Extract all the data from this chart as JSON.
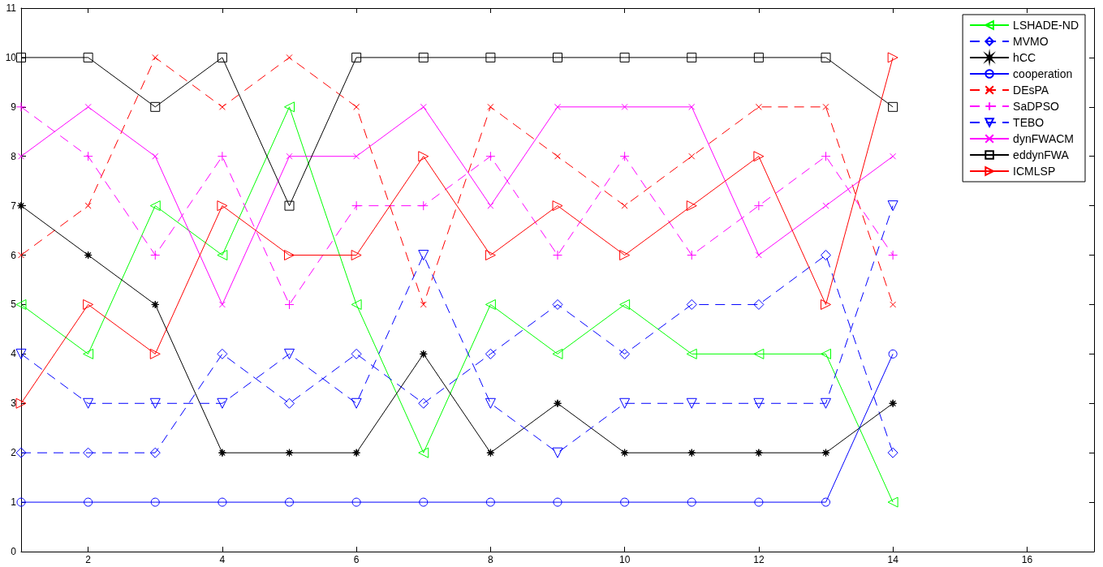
{
  "chart_data": {
    "type": "line",
    "x": [
      1,
      2,
      3,
      4,
      5,
      6,
      7,
      8,
      9,
      10,
      11,
      12,
      13,
      14
    ],
    "xlim": [
      1,
      17
    ],
    "xticks": [
      2,
      4,
      6,
      8,
      10,
      12,
      14,
      16
    ],
    "ylim": [
      0,
      11
    ],
    "yticks": [
      0,
      1,
      2,
      3,
      4,
      5,
      6,
      7,
      8,
      9,
      10,
      11
    ],
    "legend": "top right",
    "series": [
      {
        "name": "LSHADE-ND",
        "color": "#00ff00",
        "marker": "triangle-left",
        "line_style": "solid",
        "values": [
          5,
          4,
          7,
          6,
          9,
          5,
          2,
          5,
          4,
          5,
          4,
          4,
          4,
          1
        ]
      },
      {
        "name": "MVMO",
        "color": "#0000ff",
        "marker": "diamond",
        "line_style": "dashed",
        "values": [
          2,
          2,
          2,
          4,
          3,
          4,
          3,
          4,
          5,
          4,
          5,
          5,
          6,
          2
        ]
      },
      {
        "name": "hCC",
        "color": "#000000",
        "marker": "star",
        "line_style": "solid",
        "values": [
          7,
          6,
          5,
          2,
          2,
          2,
          4,
          2,
          3,
          2,
          2,
          2,
          2,
          3
        ]
      },
      {
        "name": "cooperation",
        "color": "#0000ff",
        "marker": "circle",
        "line_style": "solid",
        "values": [
          1,
          1,
          1,
          1,
          1,
          1,
          1,
          1,
          1,
          1,
          1,
          1,
          1,
          4
        ]
      },
      {
        "name": "DEsPA",
        "color": "#ff0000",
        "marker": "x",
        "line_style": "dashed",
        "values": [
          6,
          7,
          10,
          9,
          10,
          9,
          5,
          9,
          8,
          7,
          8,
          9,
          9,
          5
        ]
      },
      {
        "name": "SaDPSO",
        "color": "#ff00ff",
        "marker": "plus",
        "line_style": "dashed",
        "values": [
          9,
          8,
          6,
          8,
          5,
          7,
          7,
          8,
          6,
          8,
          6,
          7,
          8,
          6
        ]
      },
      {
        "name": "TEBO",
        "color": "#0000ff",
        "marker": "triangle-down",
        "line_style": "dashed",
        "values": [
          4,
          3,
          3,
          3,
          4,
          3,
          6,
          3,
          2,
          3,
          3,
          3,
          3,
          7
        ]
      },
      {
        "name": "dynFWACM",
        "color": "#ff00ff",
        "marker": "x",
        "line_style": "solid",
        "values": [
          8,
          9,
          8,
          5,
          8,
          8,
          9,
          7,
          9,
          9,
          9,
          6,
          7,
          8
        ]
      },
      {
        "name": "eddynFWA",
        "color": "#000000",
        "marker": "square",
        "line_style": "solid",
        "values": [
          10,
          10,
          9,
          10,
          7,
          10,
          10,
          10,
          10,
          10,
          10,
          10,
          10,
          9
        ]
      },
      {
        "name": "ICMLSP",
        "color": "#ff0000",
        "marker": "triangle-right",
        "line_style": "solid",
        "values": [
          3,
          5,
          4,
          7,
          6,
          6,
          8,
          6,
          7,
          6,
          7,
          8,
          5,
          10
        ]
      }
    ]
  }
}
